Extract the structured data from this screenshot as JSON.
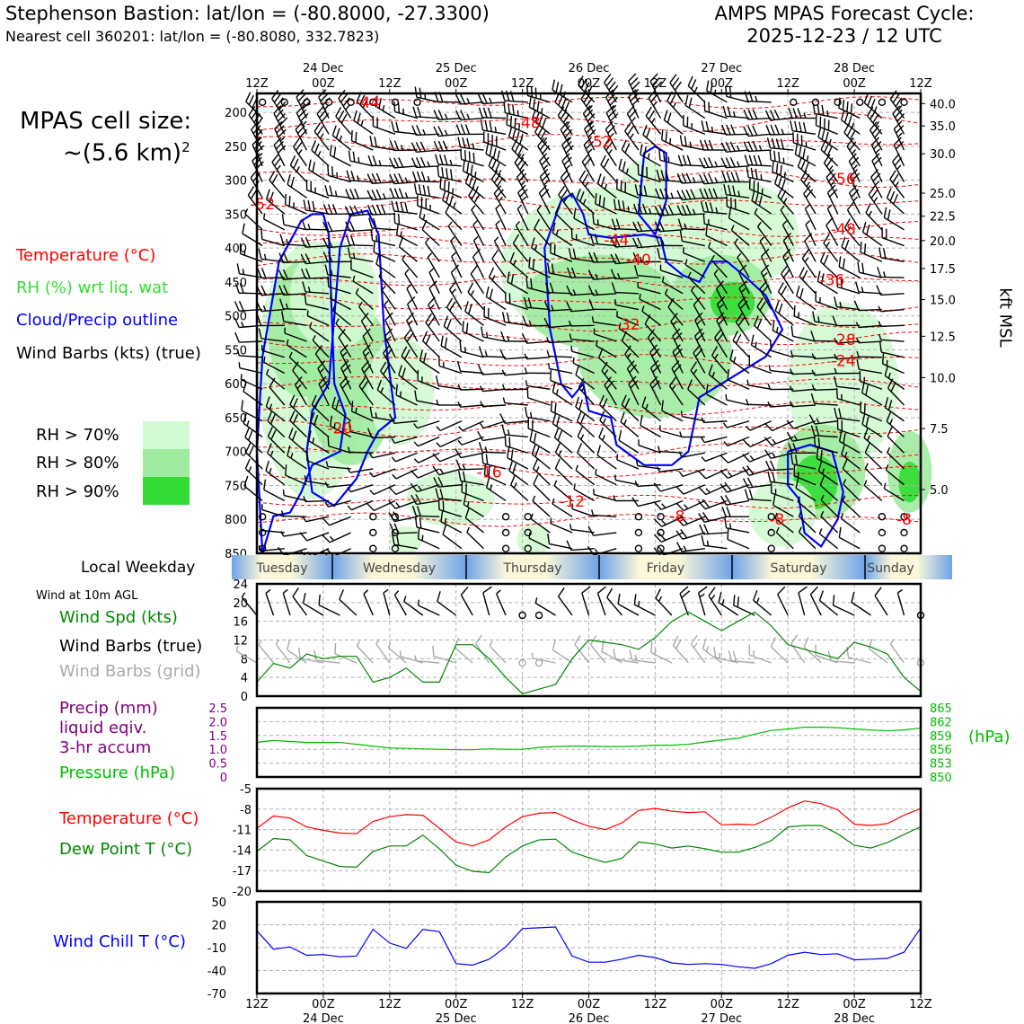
{
  "header": {
    "station_title": "Stephenson Bastion: lat/lon = (-80.8000, -27.3300)",
    "nearest_cell": "Nearest cell 360201: lat/lon = (-80.8080, 332.7823)",
    "forecast_title": "AMPS MPAS Forecast Cycle:",
    "forecast_cycle": "2025-12-23 / 12 UTC"
  },
  "side": {
    "cell_size_label": "MPAS cell size:",
    "cell_size_value": "~(5.6 km)",
    "cell_size_exp": "2",
    "legend_temperature": "Temperature (°C)",
    "legend_rh": "RH (%) wrt liq. wat",
    "legend_cloud": "Cloud/Precip outline",
    "legend_barbs": "Wind Barbs (kts) (true)",
    "rh_levels": [
      "RH > 70%",
      "RH > 80%",
      "RH > 90%"
    ],
    "weekday_label": "Local Weekday",
    "wind10m_title": "Wind at 10m AGL",
    "wind_spd_label": "Wind Spd (kts)",
    "wind_barbs_true": "Wind Barbs (true)",
    "wind_barbs_grid": "Wind Barbs (grid)",
    "precip_label_1": "Precip (mm)",
    "precip_label_2": "liquid eqiv.",
    "precip_label_3": "3-hr accum",
    "pressure_label": "Pressure (hPa)",
    "pressure_unit": "(hPa)",
    "temp_label": "Temperature (°C)",
    "dew_label": "Dew Point T (°C)",
    "windchill_label": "Wind Chill T (°C)",
    "kft_label": "kft MSL"
  },
  "colors": {
    "temperature": "#ff0000",
    "rh_text": "#33dd33",
    "cloud": "#0000ff",
    "wind_speed": "#008800",
    "grid_barbs": "#aaaaaa",
    "precip": "#800080",
    "pressure": "#00bb00",
    "dewpoint": "#008800",
    "windchill": "#0000ff",
    "rh70": "#d2fad2",
    "rh80": "#a0eba0",
    "rh90": "#32dc32"
  },
  "chart_data": {
    "time_axis": {
      "tick_labels": [
        "12Z",
        "00Z",
        "12Z",
        "00Z",
        "12Z",
        "00Z",
        "12Z",
        "00Z",
        "12Z",
        "00Z",
        "12Z"
      ],
      "date_labels": [
        "24 Dec",
        "25 Dec",
        "26 Dec",
        "27 Dec",
        "28 Dec"
      ],
      "hours_since_cycle_start": [
        0,
        12,
        24,
        36,
        48,
        60,
        72,
        84,
        96,
        108,
        120
      ]
    },
    "weekdays": [
      "Tuesday",
      "Wednesday",
      "Thursday",
      "Friday",
      "Saturday",
      "Sunday"
    ],
    "cross_section": {
      "type": "heatmap",
      "pressure_ticks_hpa": [
        200,
        250,
        300,
        350,
        400,
        450,
        500,
        550,
        600,
        650,
        700,
        750,
        800,
        850
      ],
      "height_ticks_kft": [
        "40.0",
        "35.0",
        "30.0",
        "25.0",
        "22.5",
        "20.0",
        "17.5",
        "15.0",
        "12.5",
        "10.0",
        "7.5",
        "5.0"
      ],
      "height_tick_pressure_hpa": [
        187,
        220,
        261,
        319,
        353,
        389,
        430,
        476,
        530,
        591,
        666,
        756
      ],
      "temperature_contour_labels": [
        {
          "text": "-44",
          "hour": 20,
          "hpa": 185
        },
        {
          "text": "-48",
          "hour": 49,
          "hpa": 215
        },
        {
          "text": "-52",
          "hour": 62,
          "hpa": 243
        },
        {
          "text": "-56",
          "hour": 106,
          "hpa": 298
        },
        {
          "text": "-52",
          "hour": 1,
          "hpa": 335
        },
        {
          "text": "-48",
          "hour": 106,
          "hpa": 372
        },
        {
          "text": "-44",
          "hour": 65,
          "hpa": 388
        },
        {
          "text": "-40",
          "hour": 69,
          "hpa": 417
        },
        {
          "text": "-36",
          "hour": 104,
          "hpa": 447
        },
        {
          "text": "-32",
          "hour": 67,
          "hpa": 512
        },
        {
          "text": "-28",
          "hour": 106,
          "hpa": 535
        },
        {
          "text": "-24",
          "hour": 106,
          "hpa": 566
        },
        {
          "text": "-20",
          "hour": 15,
          "hpa": 665
        },
        {
          "text": "-16",
          "hour": 42,
          "hpa": 730
        },
        {
          "text": "-12",
          "hour": 57,
          "hpa": 773
        },
        {
          "text": "-8",
          "hour": 76,
          "hpa": 795
        },
        {
          "text": "-8",
          "hour": 94,
          "hpa": 800
        },
        {
          "text": "-8",
          "hour": 117,
          "hpa": 800
        }
      ],
      "rh_levels_percent": [
        70,
        80,
        90
      ]
    },
    "wind_10m": {
      "type": "line",
      "ylabel": "Wind Spd (kts)",
      "ylim": [
        0,
        24
      ],
      "yticks": [
        0,
        4,
        8,
        12,
        16,
        20,
        24
      ],
      "hours": [
        0,
        3,
        6,
        9,
        12,
        15,
        18,
        21,
        24,
        27,
        30,
        33,
        36,
        39,
        42,
        45,
        48,
        51,
        54,
        57,
        60,
        63,
        66,
        69,
        72,
        75,
        78,
        81,
        84,
        87,
        90,
        93,
        96,
        99,
        102,
        105,
        108,
        111,
        114,
        117,
        120
      ],
      "speed_kts": [
        3,
        7,
        6,
        9,
        8,
        8.5,
        8.5,
        3,
        4,
        6,
        3,
        3,
        11,
        11,
        8,
        4,
        0.5,
        1.5,
        2.5,
        8,
        12,
        11.5,
        11,
        10,
        12.5,
        16,
        18,
        16,
        14,
        16,
        18,
        15,
        11,
        10,
        9,
        8,
        11.5,
        10.5,
        9,
        4,
        1
      ]
    },
    "precip_pressure": {
      "type": "line",
      "precip_yticks": [
        "0",
        "0.5",
        "1.0",
        "1.5",
        "2.0",
        "2.5"
      ],
      "pressure_yticks": [
        850,
        853,
        856,
        859,
        862,
        865
      ],
      "pressure_ylim": [
        850,
        865
      ],
      "hours": [
        0,
        3,
        6,
        9,
        12,
        15,
        18,
        21,
        24,
        27,
        30,
        33,
        36,
        39,
        42,
        45,
        48,
        51,
        54,
        57,
        60,
        63,
        66,
        69,
        72,
        75,
        78,
        81,
        84,
        87,
        90,
        93,
        96,
        99,
        102,
        105,
        108,
        111,
        114,
        117,
        120
      ],
      "pressure_hpa": [
        857.5,
        857.9,
        857.7,
        857.5,
        857.5,
        857.5,
        857.1,
        856.7,
        856.3,
        856.2,
        856.1,
        856.0,
        855.9,
        855.9,
        856.1,
        856.0,
        856.0,
        856.4,
        856.6,
        856.7,
        856.7,
        856.6,
        856.6,
        856.7,
        856.9,
        856.9,
        857.1,
        857.6,
        858.0,
        858.4,
        859.3,
        860.1,
        860.4,
        860.8,
        860.8,
        860.7,
        860.4,
        860.2,
        860.0,
        860.2,
        860.6
      ],
      "precip_mm": []
    },
    "temperature_dewpoint": {
      "type": "line",
      "ylim": [
        -20,
        -5
      ],
      "yticks": [
        -20,
        -17,
        -14,
        -11,
        -8,
        -5
      ],
      "hours": [
        0,
        3,
        6,
        9,
        12,
        15,
        18,
        21,
        24,
        27,
        30,
        33,
        36,
        39,
        42,
        45,
        48,
        51,
        54,
        57,
        60,
        63,
        66,
        69,
        72,
        75,
        78,
        81,
        84,
        87,
        90,
        93,
        96,
        99,
        102,
        105,
        108,
        111,
        114,
        117,
        120
      ],
      "series": [
        {
          "name": "Temperature (°C)",
          "values": [
            -10.8,
            -9.0,
            -9.3,
            -10.6,
            -11.1,
            -11.5,
            -11.6,
            -9.8,
            -9.1,
            -8.8,
            -8.9,
            -10.8,
            -12.8,
            -13.4,
            -12.5,
            -10.6,
            -9.1,
            -8.6,
            -8.5,
            -9.6,
            -10.5,
            -11.0,
            -10.0,
            -8.2,
            -7.9,
            -8.3,
            -8.5,
            -8.4,
            -10.3,
            -10.2,
            -10.3,
            -9.2,
            -7.8,
            -6.8,
            -7.2,
            -8.1,
            -10.2,
            -10.4,
            -10.1,
            -8.9,
            -7.9
          ]
        },
        {
          "name": "Dew Point T (°C)",
          "values": [
            -14.2,
            -12.3,
            -12.5,
            -14.8,
            -15.6,
            -16.4,
            -16.5,
            -14.2,
            -13.4,
            -13.4,
            -11.8,
            -13.8,
            -16.2,
            -17.1,
            -17.3,
            -15.0,
            -13.4,
            -12.5,
            -12.4,
            -14.3,
            -15.1,
            -15.8,
            -15.2,
            -12.8,
            -13.1,
            -13.7,
            -13.4,
            -13.8,
            -14.3,
            -14.3,
            -13.6,
            -12.6,
            -10.6,
            -10.4,
            -10.4,
            -11.6,
            -13.3,
            -13.7,
            -12.9,
            -11.7,
            -10.6
          ]
        }
      ]
    },
    "wind_chill": {
      "type": "line",
      "ylabel": "Wind Chill T (°C)",
      "ylim": [
        -70,
        50
      ],
      "yticks": [
        -70,
        -40,
        -10,
        20,
        50
      ],
      "hours": [
        0,
        3,
        6,
        9,
        12,
        15,
        18,
        21,
        24,
        27,
        30,
        33,
        36,
        39,
        42,
        45,
        48,
        51,
        54,
        57,
        60,
        63,
        66,
        69,
        72,
        75,
        78,
        81,
        84,
        87,
        90,
        93,
        96,
        99,
        102,
        105,
        108,
        111,
        114,
        117,
        120
      ],
      "values": [
        12,
        -12,
        -9,
        -20,
        -19,
        -22,
        -21,
        14,
        -4,
        -11,
        14,
        11,
        -31,
        -33,
        -25,
        -9,
        15,
        16,
        17,
        -21,
        -29,
        -29,
        -25,
        -20,
        -23,
        -30,
        -32,
        -31,
        -32,
        -35,
        -37,
        -31,
        -20,
        -16,
        -19,
        -18,
        -26,
        -25,
        -24,
        -16,
        16
      ]
    }
  }
}
